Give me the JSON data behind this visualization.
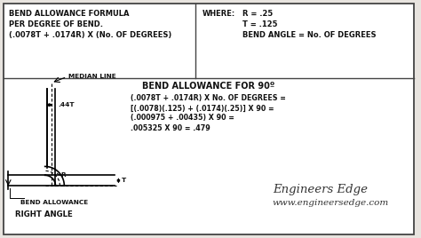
{
  "bg_color": "#e8e4df",
  "box_color": "#ffffff",
  "border_color": "#444444",
  "title_top_left_l1": "BEND ALLOWANCE FORMULA",
  "title_top_left_l2": "PER DEGREE OF BEND.",
  "title_top_left_l3": "(.0078T + .0174R) X (No. OF DEGREES)",
  "where_label": "WHERE:",
  "where_r": "R = .25",
  "where_t": "T = .125",
  "where_angle": "BEND ANGLE = No. OF DEGREES",
  "section2_title": "BEND ALLOWANCE FOR 90º",
  "section2_l1": "(.0078T + .0174R) X No. OF DEGREES =",
  "section2_l2": "[(.0078)(.125) + (.0174)(.25)] X 90 =",
  "section2_l3": "(.000975 + .00435) X 90 =",
  "section2_l4": ".005325 X 90 = .479",
  "brand_line1": "Engineers Edge",
  "brand_line2": "www.engineersedge.com",
  "median_line_label": "MEDIAN LINE",
  "dot44t_label": ".44T",
  "R_label": "R",
  "T_label": "T",
  "bend_allowance_label": "BEND ALLOWANCE",
  "right_angle_label": "RIGHT ANGLE"
}
